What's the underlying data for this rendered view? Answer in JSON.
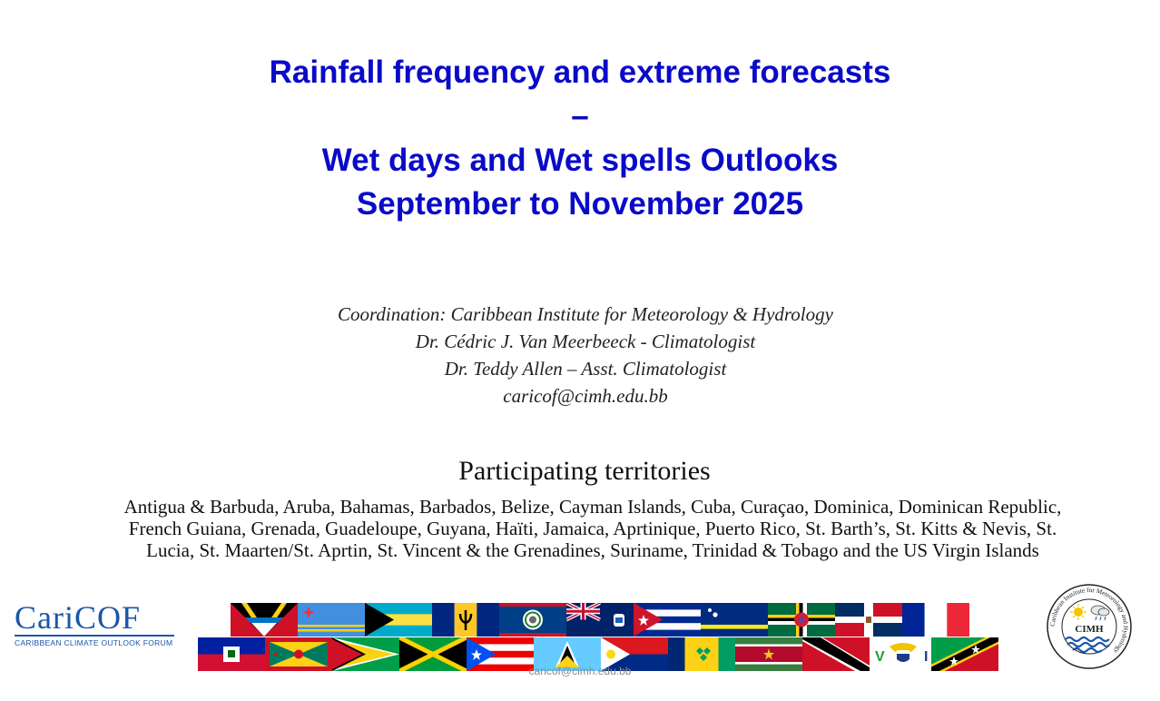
{
  "title": {
    "line1": "Rainfall frequency and extreme forecasts",
    "line2": "–",
    "line3": "Wet days and Wet spells Outlooks",
    "line4": "September to November 2025"
  },
  "coordination": {
    "line1": "Coordination: Caribbean Institute for Meteorology & Hydrology",
    "line2": "Dr. Cédric J. Van Meerbeeck - Climatologist",
    "line3": "Dr. Teddy Allen – Asst. Climatologist",
    "line4": "caricof@cimh.edu.bb"
  },
  "participating": {
    "heading": "Participating territories",
    "text": "Antigua & Barbuda, Aruba, Bahamas, Barbados, Belize, Cayman Islands, Cuba, Curaçao, Dominica, Dominican Republic, French Guiana, Grenada, Guadeloupe, Guyana, Haïti, Jamaica, Aprtinique, Puerto Rico, St. Barth’s, St. Kitts & Nevis, St. Lucia, St. Maarten/St. Aprtin, St. Vincent & the Grenadines, Suriname, Trinidad & Tobago and the US Virgin Islands"
  },
  "logo_left": {
    "word": "CariCOF",
    "subtitle": "CARIBBEAN CLIMATE OUTLOOK FORUM"
  },
  "logo_right": {
    "ring_text": "Caribbean Institute for Meteorology and Hydrology",
    "center_text": "CIMH"
  },
  "footer": "caricof@cimh.edu.bb",
  "flags": {
    "row1": [
      "antigua-and-barbuda",
      "aruba",
      "bahamas",
      "barbados",
      "belize",
      "cayman-islands",
      "cuba",
      "curacao",
      "dominica",
      "dominican-republic",
      "france"
    ],
    "row2": [
      "haiti",
      "grenada",
      "guyana",
      "jamaica",
      "puerto-rico",
      "st-lucia",
      "st-maarten",
      "st-vincent",
      "suriname",
      "trinidad-and-tobago",
      "us-virgin-islands",
      "st-kitts-and-nevis"
    ]
  },
  "colors": {
    "title": "#0a0ac8",
    "logo_blue": "#1a56a8"
  }
}
